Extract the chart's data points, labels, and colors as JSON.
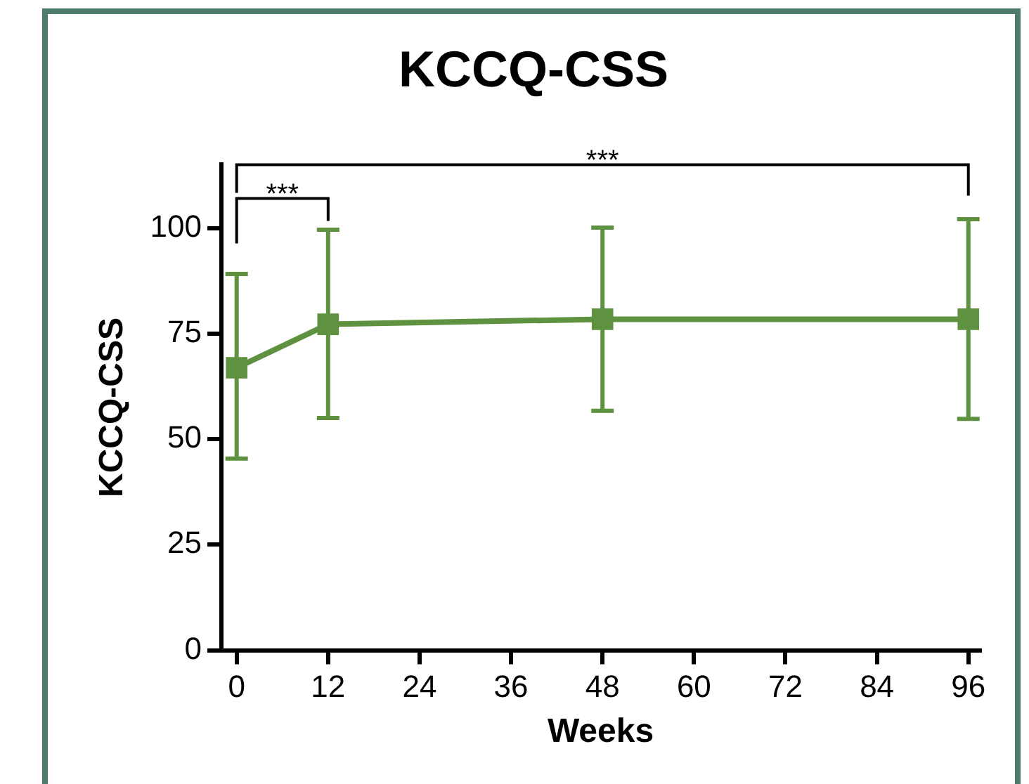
{
  "chart_data": {
    "type": "line",
    "title": "KCCQ-CSS",
    "xlabel": "Weeks",
    "ylabel": "KCCQ-CSS",
    "x": [
      0,
      12,
      48,
      96
    ],
    "series": [
      {
        "color": "#5e9140",
        "values": [
          66.9,
          77.2,
          78.4,
          78.4
        ],
        "errors": [
          [
            45.4,
            89.1
          ],
          [
            55.0,
            99.6
          ],
          [
            56.7,
            100.1
          ],
          [
            54.8,
            102.1
          ]
        ]
      }
    ],
    "xlim": [
      -2,
      97.5
    ],
    "xticks": [
      0,
      12,
      24,
      36,
      48,
      60,
      72,
      84,
      96
    ],
    "ylim": [
      0,
      115
    ],
    "yticks": [
      0,
      25,
      50,
      75,
      100
    ],
    "grid": false,
    "legend": false,
    "marker": "square",
    "line_style": "solid",
    "annotations": [
      "***",
      "***"
    ]
  }
}
